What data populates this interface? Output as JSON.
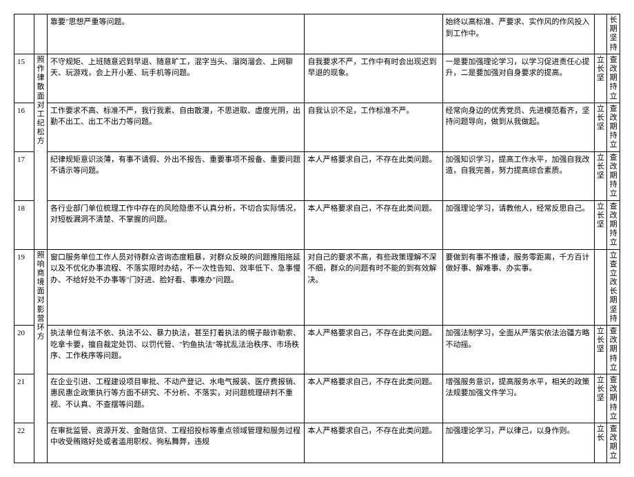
{
  "table": {
    "rows": [
      {
        "num": "",
        "cat": "",
        "issue": "靠要\"思想严重等问题。",
        "self": "",
        "action": "始终以高标准、严要求、实作风的作风投入到工作中。",
        "t1": "",
        "t2": "长期坚持"
      },
      {
        "num": "15",
        "cat": "照作律散面对工纪松方",
        "issue": "不守规矩、上班随意迟到早退、随意旷工，混字当头、溜岗溜会、上网聊天、玩游戏，会上开小差、玩手机等问题。",
        "self": "自我要求不严，工作中有时会出现迟到早退的现象。",
        "action": "一是要加强理论学习，以学习促进责任心提升，二是要加强对自身要求的提高。",
        "t1": "立长坚",
        "t2": "查改期持立"
      },
      {
        "num": "16",
        "cat": "",
        "issue": "工作要求不高、标准不严，我行我素、自由散漫，不思进取、虚度光阴，出勤不出工、出工不出力等问题。",
        "self": "自我认识不足，工作标准不严。",
        "action": "经常向身边的优秀党员、先进模范看齐，坚持问题导向，做到从我做起。",
        "t1": "立长坚",
        "t2": "查改期持立"
      },
      {
        "num": "17",
        "cat": "",
        "issue": "纪律规矩意识淡薄，有事不请假、外出不报告、重要事项不报备、重要问题不请示等问题。",
        "self": "本人严格要求自己，不存在此类问题。",
        "action": "加强知识学习，提高工作水平，加强自我改造，自我完善，努力提高综合素质。",
        "t1": "立长坚",
        "t2": "查改期持立"
      },
      {
        "num": "18",
        "cat": "",
        "issue": "各行业部门单位梳理工作中存在的风险隐患不认真分析，不切合实际情况，对短板漏洞不清楚、不掌握的问题。",
        "self": "本人严格要求自己，不存在此类问题。",
        "action": "加强理论学习，请教他人，经常反思自己。",
        "t1": "立长坚",
        "t2": "查改期持立"
      },
      {
        "num": "19",
        "cat": "照响商境面对影营环方",
        "issue": "窗口服务单位工作人员对待群众咨询态度粗暴，对群众反映的问题推阻拖延以及不优化办事流程、不落实限时办结，不一次性告知、效率低下、急事慢办、不给好处不办事等\"门好进、脸好看、事难办\"问题。",
        "self": "对自己的要求不高，有些政策理解不深不细，群众的问题有时不能的到有效解决。",
        "action": "要做到有事不推诿，服务零距离，千方百计做好事、解难事、办实事。",
        "t1": "",
        "t2": "立查立改长期坚持"
      },
      {
        "num": "20",
        "cat": "",
        "issue": "执法单位有法不依、执法不公、暴力执法，甚至打着执法的幌子敲诈勒索、吃拿卡要，擅自裁定处罚、以罚代管、\"钓鱼执法\"等扰乱法治秩序、市场秩序、工作秩序等问题。",
        "self": "本人严格要求自己，不存在此类问题。",
        "action": "加强法制学习，全面从严落实依法治疆方略不动摇。",
        "t1": "立长坚",
        "t2": "查改期持立"
      },
      {
        "num": "21",
        "cat": "",
        "issue": "在企业引进、工程建设项目审批、不动产登记、水电气报装、医疗费报销、惠民惠企政策执行等方面不研究、不分析、不落实，对问题梳理研判不重视、不认真、不查摆等问题。",
        "self": "本人严格要求自己，不存在此类问题。",
        "action": "增强服务意识，提高服务水平，相关的政策法规要加强文件学习。",
        "t1": "立长坚",
        "t2": "查改期持立"
      },
      {
        "num": "22",
        "cat": "",
        "issue": "在审批监管、资源开发、金融信贷、工程招投标等重点领域管理和服务过程中收受贿赂好处或者滥用职权、徇私舞弊，违规",
        "self": "本人严格要求自己，不存在此类问题。",
        "action": "加强理论学习，严以律己，以身作则。",
        "t1": "立长",
        "t2": "查改期立"
      }
    ],
    "rowspans": {
      "cat1": {
        "start": 1,
        "span": 4
      },
      "cat2": {
        "start": 5,
        "span": 4
      }
    }
  }
}
